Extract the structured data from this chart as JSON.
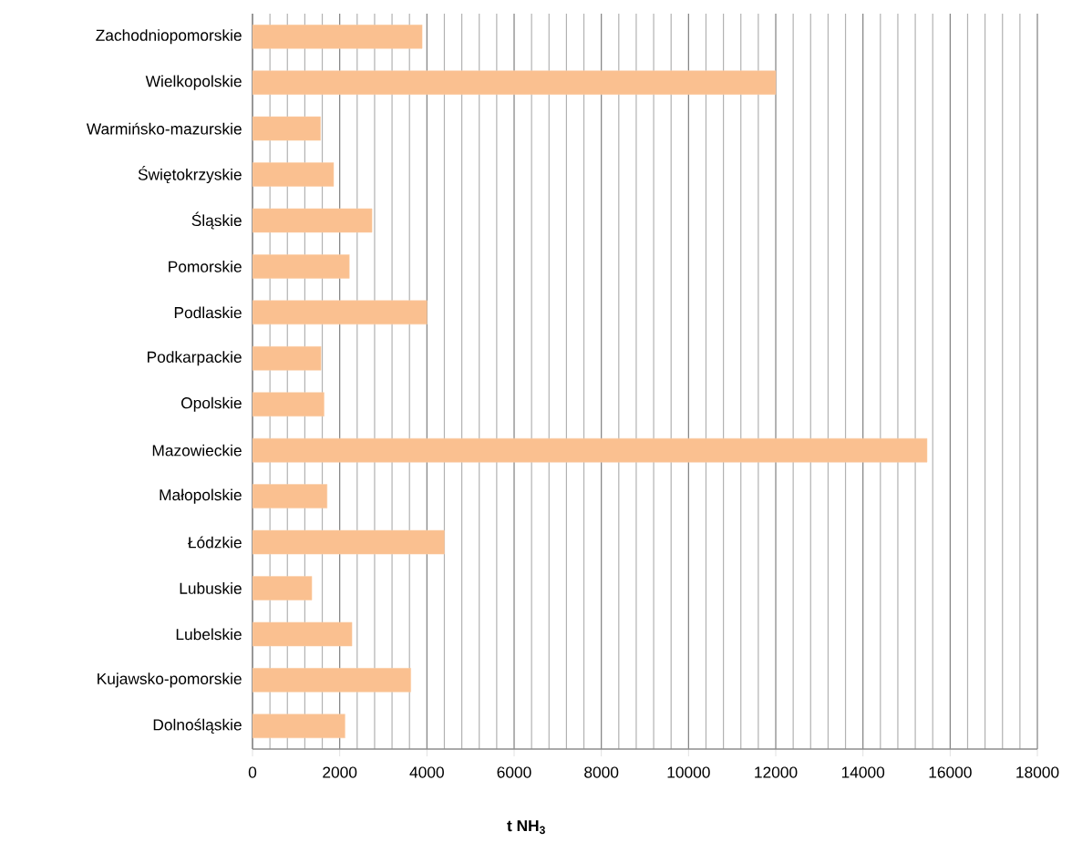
{
  "chart_data": {
    "type": "bar",
    "orientation": "horizontal",
    "xlabel": "t NH$_{3}$",
    "categories": [
      "Zachodniopomorskie",
      "Wielkopolskie",
      "Warmińsko-mazurskie",
      "Świętokrzyskie",
      "Śląskie",
      "Pomorskie",
      "Podlaskie",
      "Podkarpackie",
      "Opolskie",
      "Mazowieckie",
      "Małopolskie",
      "Łódzkie",
      "Lubuskie",
      "Lubelskie",
      "Kujawsko-pomorskie",
      "Dolnośląskie"
    ],
    "values": [
      3890,
      12000,
      1560,
      1860,
      2740,
      2220,
      4000,
      1570,
      1640,
      15470,
      1710,
      4400,
      1360,
      2280,
      3630,
      2120
    ],
    "color": "#fac090",
    "xlim": [
      0,
      18000
    ],
    "xticks": [
      0,
      2000,
      4000,
      6000,
      8000,
      10000,
      12000,
      14000,
      16000,
      18000
    ],
    "grid": "x"
  }
}
